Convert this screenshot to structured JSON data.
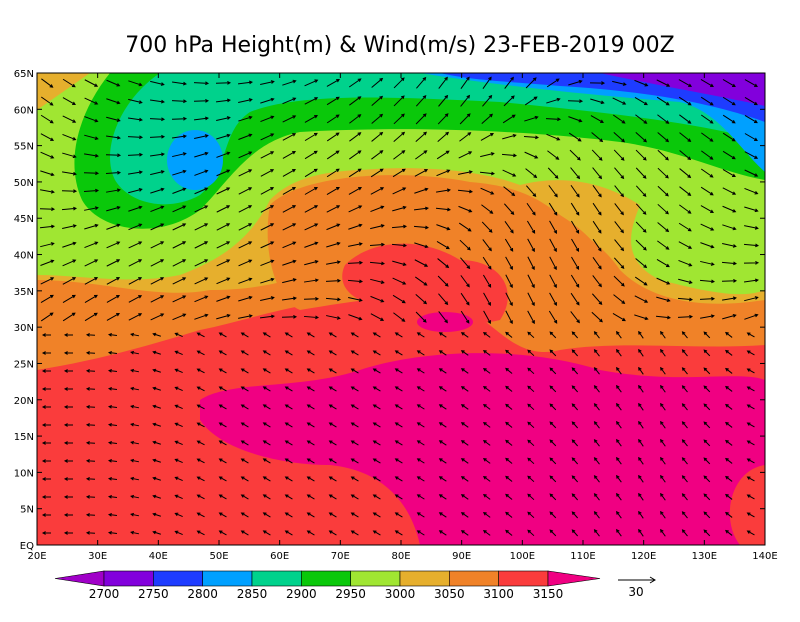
{
  "title": "700 hPa Height(m) & Wind(m/s) 23-FEB-2019 00Z",
  "map": {
    "lat_labels": [
      "65N",
      "60N",
      "55N",
      "50N",
      "45N",
      "40N",
      "35N",
      "30N",
      "25N",
      "20N",
      "15N",
      "10N",
      "5N",
      "EQ"
    ],
    "lon_labels": [
      "20E",
      "30E",
      "40E",
      "50E",
      "60E",
      "70E",
      "80E",
      "90E",
      "100E",
      "110E",
      "120E",
      "130E",
      "140E"
    ]
  },
  "colorbar": {
    "levels": [
      2700,
      2750,
      2800,
      2850,
      2900,
      2950,
      3000,
      3050,
      3100,
      3150
    ],
    "colors": [
      "#a000c8",
      "#8200dc",
      "#1e3cff",
      "#00a0ff",
      "#00d28c",
      "#0ac80a",
      "#a0e632",
      "#e6af2d",
      "#f08228",
      "#fa3c3c",
      "#f00082"
    ]
  },
  "reference_vector": 30
}
